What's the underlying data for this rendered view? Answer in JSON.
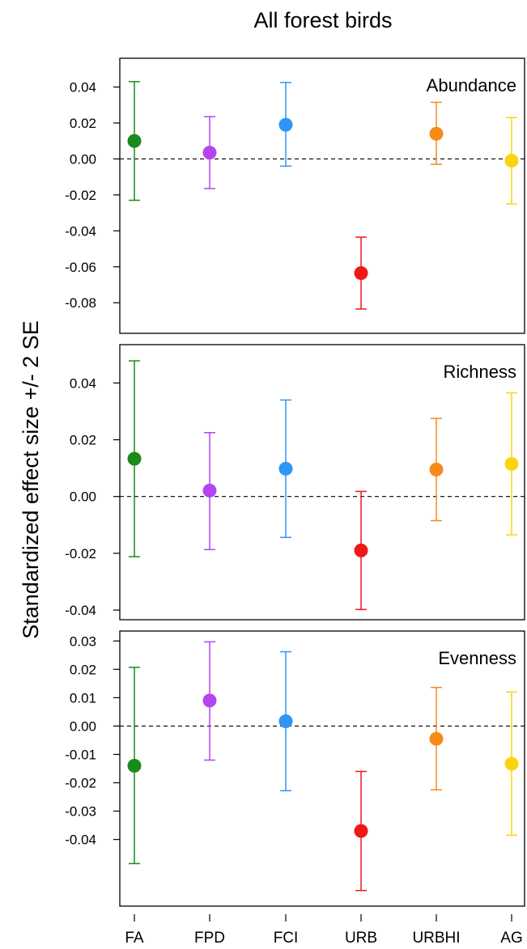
{
  "chart_data": {
    "type": "scatter",
    "title": "All forest birds",
    "ylabel": "Standardized effect size +/- 2 SE",
    "categories": [
      "FA",
      "FPD",
      "FCI",
      "URB",
      "URBHI",
      "AG"
    ],
    "colors": [
      "#1a8a1a",
      "#b545f0",
      "#2e96f5",
      "#f01818",
      "#f88a1a",
      "#fbd40e"
    ],
    "reference_line": 0,
    "panels": [
      {
        "name": "Abundance",
        "ylim": [
          -0.097,
          0.056
        ],
        "yticks": [
          "0.04",
          "0.02",
          "0.00",
          "-0.02",
          "-0.04",
          "-0.06",
          "-0.08"
        ],
        "ytick_values": [
          0.04,
          0.02,
          0.0,
          -0.02,
          -0.04,
          -0.06,
          -0.08
        ],
        "points": [
          {
            "estimate": 0.01,
            "lower": -0.023,
            "upper": 0.043
          },
          {
            "estimate": 0.0035,
            "lower": -0.0165,
            "upper": 0.0235
          },
          {
            "estimate": 0.019,
            "lower": -0.004,
            "upper": 0.0425
          },
          {
            "estimate": -0.0635,
            "lower": -0.0835,
            "upper": -0.0435
          },
          {
            "estimate": 0.014,
            "lower": -0.003,
            "upper": 0.0315
          },
          {
            "estimate": -0.001,
            "lower": -0.025,
            "upper": 0.023
          }
        ]
      },
      {
        "name": "Richness",
        "ylim": [
          -0.0434,
          0.0535
        ],
        "yticks": [
          "0.04",
          "0.02",
          "0.00",
          "-0.02",
          "-0.04"
        ],
        "ytick_values": [
          0.04,
          0.02,
          0.0,
          -0.02,
          -0.04
        ],
        "points": [
          {
            "estimate": 0.0133,
            "lower": -0.0212,
            "upper": 0.0478
          },
          {
            "estimate": 0.0021,
            "lower": -0.0187,
            "upper": 0.0225
          },
          {
            "estimate": 0.0098,
            "lower": -0.0144,
            "upper": 0.034
          },
          {
            "estimate": -0.019,
            "lower": -0.0398,
            "upper": 0.0018
          },
          {
            "estimate": 0.0095,
            "lower": -0.0085,
            "upper": 0.0275
          },
          {
            "estimate": 0.0115,
            "lower": -0.0135,
            "upper": 0.0365
          }
        ]
      },
      {
        "name": "Evenness",
        "ylim": [
          -0.0635,
          0.0335
        ],
        "yticks": [
          "0.03",
          "0.02",
          "0.01",
          "0.00",
          "-0.01",
          "-0.02",
          "-0.03",
          "-0.04"
        ],
        "ytick_values": [
          0.03,
          0.02,
          0.01,
          0.0,
          -0.01,
          -0.02,
          -0.03,
          -0.04
        ],
        "points": [
          {
            "estimate": -0.014,
            "lower": -0.0485,
            "upper": 0.0207
          },
          {
            "estimate": 0.009,
            "lower": -0.012,
            "upper": 0.0297
          },
          {
            "estimate": 0.0017,
            "lower": -0.0228,
            "upper": 0.0262
          },
          {
            "estimate": -0.037,
            "lower": -0.058,
            "upper": -0.016
          },
          {
            "estimate": -0.0045,
            "lower": -0.0225,
            "upper": 0.0136
          },
          {
            "estimate": -0.0133,
            "lower": -0.0385,
            "upper": 0.012
          }
        ]
      }
    ]
  }
}
